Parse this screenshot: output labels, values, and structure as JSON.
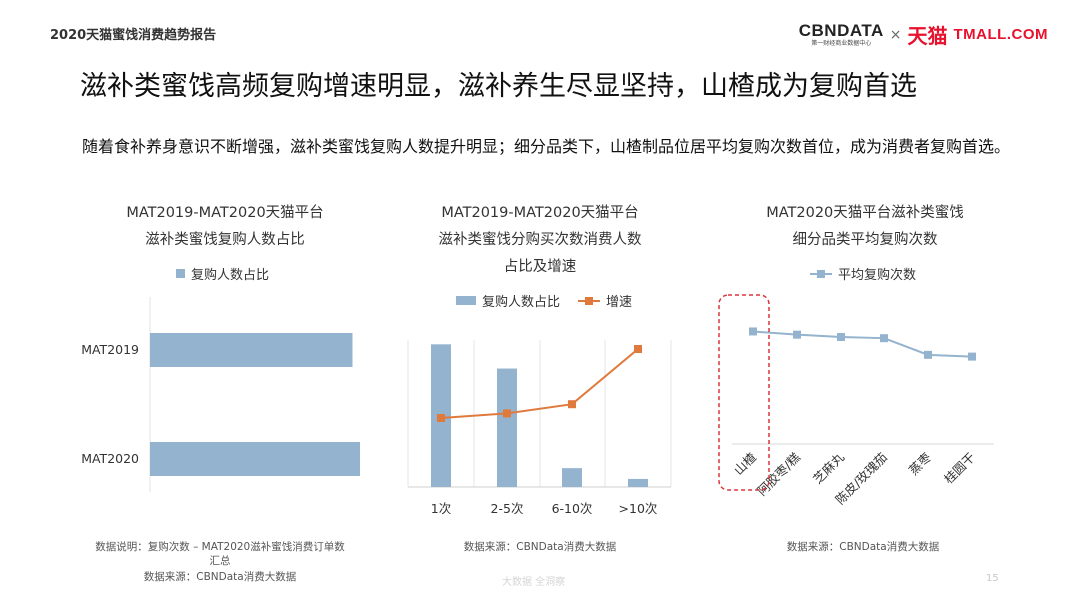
{
  "header": {
    "report_title": "2020天猫蜜饯消费趋势报告",
    "logo_cbn": "CBNDATA",
    "logo_cbn_sub": "第一财经商业数据中心",
    "logo_x": "×",
    "logo_tmall_cn": "天猫",
    "logo_tmall_en": "TMALL.COM"
  },
  "main_title": "滋补类蜜饯高频复购增速明显，滋补养生尽显坚持，山楂成为复购首选",
  "description": "随着食补养身意识不断增强，滋补类蜜饯复购人数提升明显；细分品类下，山楂制品位居平均复购次数首位，成为消费者复购首选。",
  "colors": {
    "bar": "#94b3cf",
    "growth": "#e07a3c",
    "line": "#94b3cf",
    "highlight": "#d9363e"
  },
  "chart_data": [
    {
      "type": "bar",
      "orientation": "horizontal",
      "title_line1": "MAT2019-MAT2020天猫平台",
      "title_line2": "滋补类蜜饯复购人数占比",
      "legend": "复购人数占比",
      "categories": [
        "MAT2019",
        "MAT2020"
      ],
      "values": [
        0.81,
        0.84
      ],
      "xlim": [
        0,
        1
      ],
      "grid": false
    },
    {
      "type": "bar+line",
      "title_line1": "MAT2019-MAT2020天猫平台",
      "title_line2": "滋补类蜜饯分购买次数消费人数",
      "title_line3": "占比及增速",
      "categories": [
        "1次",
        "2-5次",
        "6-10次",
        ">10次"
      ],
      "series": [
        {
          "name": "复购人数占比",
          "type": "bar",
          "values": [
            0.53,
            0.44,
            0.07,
            0.03
          ]
        },
        {
          "name": "增速",
          "type": "line",
          "values": [
            0.3,
            0.32,
            0.36,
            0.6
          ]
        }
      ],
      "bar_ylim": [
        0,
        0.65
      ],
      "line_ylim": [
        0,
        1
      ],
      "grid": "vertical"
    },
    {
      "type": "line",
      "title_line1": "MAT2020天猫平台滋补类蜜饯",
      "title_line2": "细分品类平均复购次数",
      "legend": "平均复购次数",
      "categories": [
        "山楂",
        "阿胶枣/糕",
        "芝麻丸",
        "陈皮/玫瑰茄",
        "蒸枣",
        "桂圆干"
      ],
      "values": [
        3.85,
        3.74,
        3.66,
        3.62,
        3.05,
        2.99
      ],
      "ylim": [
        0,
        6.5
      ],
      "highlight": "山楂"
    }
  ],
  "notes": {
    "chart1_line1": "数据说明：复购次数 – MAT2020滋补蜜饯消费订单数",
    "chart1_line2": "汇总",
    "chart1_line3": "数据来源：CBNData消费大数据",
    "chart2": "数据来源：CBNData消费大数据",
    "chart3": "数据来源：CBNData消费大数据"
  },
  "footer": {
    "watermark": "大数据 全洞察",
    "page": "15"
  }
}
